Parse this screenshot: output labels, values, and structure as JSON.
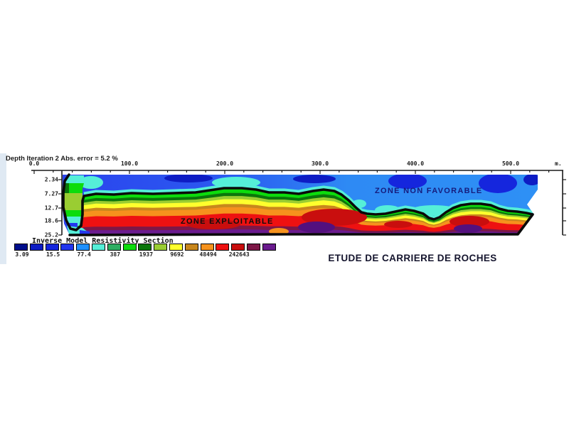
{
  "header": {
    "title": "Depth Iteration 2 Abs. error = 5.2 %"
  },
  "axes": {
    "distance_ticks": [
      "0.0",
      "100.0",
      "200.0",
      "300.0",
      "400.0",
      "500.0"
    ],
    "distance_unit": "m.",
    "depth_ticks": [
      "2.34",
      "7.27",
      "12.7",
      "18.6",
      "25.2"
    ]
  },
  "section": {
    "zone_upper_label": "ZONE NON FAVORABLE",
    "zone_lower_label": "ZONE EXPLOITABLE"
  },
  "legend": {
    "title": "Inverse Model Resistivity Section",
    "values": [
      "3.09",
      "15.5",
      "77.4",
      "387",
      "1937",
      "9692",
      "48494",
      "242643"
    ],
    "colors": [
      "#000f8c",
      "#0d1cc4",
      "#1526dd",
      "#2236ee",
      "#1e90ff",
      "#55efd8",
      "#2fae63",
      "#0cdc0c",
      "#0b760b",
      "#9acd32",
      "#ffff2d",
      "#c8871d",
      "#f6921d",
      "#ee1111",
      "#c90e0e",
      "#7d1747",
      "#6a1b8e"
    ]
  },
  "caption": {
    "text": "ETUDE DE CARRIERE DE ROCHES"
  },
  "chart_data": {
    "type": "heatmap",
    "title": "Depth Iteration 2 Abs. error = 5.2 %",
    "subtitle": "Inverse model resistivity section of an electrical tomography profile",
    "x_axis": {
      "unit": "m.",
      "ticks": [
        0,
        100,
        200,
        300,
        400,
        500
      ],
      "minor_tick_interval": 20,
      "range": [
        0,
        555
      ]
    },
    "depth_axis": {
      "ticks": [
        2.34,
        7.27,
        12.7,
        18.6,
        25.2
      ],
      "direction": "down"
    },
    "colorbar": {
      "title": "Inverse Model Resistivity Section",
      "scale": "logarithmic",
      "tick_values": [
        3.09,
        15.5,
        77.4,
        387,
        1937,
        9692,
        48494,
        242643
      ],
      "n_colors": 17,
      "colors": [
        "#000f8c",
        "#0d1cc4",
        "#1526dd",
        "#2236ee",
        "#1e90ff",
        "#55efd8",
        "#2fae63",
        "#0cdc0c",
        "#0b760b",
        "#9acd32",
        "#ffff2d",
        "#c8871d",
        "#f6921d",
        "#ee1111",
        "#c90e0e",
        "#7d1747",
        "#6a1b8e"
      ]
    },
    "zones": [
      {
        "label": "ZONE NON FAVORABLE",
        "description": "upper low-resistivity blue zone"
      },
      {
        "label": "ZONE EXPLOITABLE",
        "description": "deeper high-resistivity red/orange zone"
      }
    ],
    "caption": "ETUDE DE CARRIERE DE ROCHES"
  }
}
